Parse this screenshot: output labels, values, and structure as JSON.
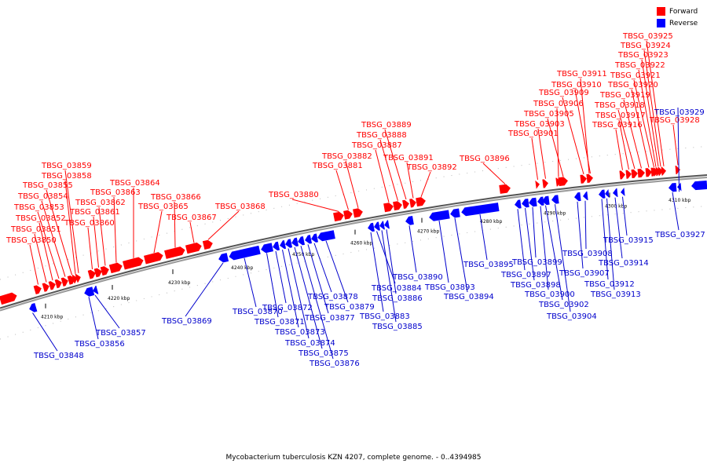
{
  "legend": {
    "forward": {
      "label": "Forward",
      "color": "#ff0000"
    },
    "reverse": {
      "label": "Reverse",
      "color": "#0000ff"
    }
  },
  "caption": "Mycobacterium tuberculosis KZN 4207, complete genome. - 0..4394985",
  "scale_ticks": [
    "4210 kbp",
    "4220 kbp",
    "4230 kbp",
    "4240 kbp",
    "4250 kbp",
    "4260 kbp",
    "4270 kbp",
    "4280 kbp",
    "4290 kbp",
    "4300 kbp",
    "4310 kbp"
  ],
  "forward_genes": [
    "TBSG_03850",
    "TBSG_03851",
    "TBSG_03852",
    "TBSG_03853",
    "TBSG_03854",
    "TBSG_03855",
    "TBSG_03858",
    "TBSG_03859",
    "TBSG_03860",
    "TBSG_03861",
    "TBSG_03862",
    "TBSG_03863",
    "TBSG_03864",
    "TBSG_03865",
    "TBSG_03866",
    "TBSG_03867",
    "TBSG_03868",
    "TBSG_03880",
    "TBSG_03881",
    "TBSG_03882",
    "TBSG_03887",
    "TBSG_03888",
    "TBSG_03889",
    "TBSG_03891",
    "TBSG_03892",
    "TBSG_03896",
    "TBSG_03901",
    "TBSG_03903",
    "TBSG_03905",
    "TBSG_03906",
    "TBSG_03909",
    "TBSG_03910",
    "TBSG_03911",
    "TBSG_03916",
    "TBSG_03917",
    "TBSG_03918",
    "TBSG_03919",
    "TBSG_03920",
    "TBSG_03921",
    "TBSG_03922",
    "TBSG_03923",
    "TBSG_03924",
    "TBSG_03925",
    "TBSG_03928"
  ],
  "reverse_genes": [
    "TBSG_03848",
    "TBSG_03856",
    "TBSG_03857",
    "TBSG_03869",
    "TBSG_03870",
    "TBSG_03871",
    "TBSG_03872",
    "TBSG_03873",
    "TBSG_03874",
    "TBSG_03875",
    "TBSG_03876",
    "TBSG_03877",
    "TBSG_03878",
    "TBSG_03879",
    "TBSG_03883",
    "TBSG_03884",
    "TBSG_03885",
    "TBSG_03886",
    "TBSG_03890",
    "TBSG_03893",
    "TBSG_03894",
    "TBSG_03895",
    "TBSG_03897",
    "TBSG_03898",
    "TBSG_03899",
    "TBSG_03900",
    "TBSG_03902",
    "TBSG_03904",
    "TBSG_03907",
    "TBSG_03908",
    "TBSG_03912",
    "TBSG_03913",
    "TBSG_03914",
    "TBSG_03915",
    "TBSG_03927",
    "TBSG_03929"
  ]
}
